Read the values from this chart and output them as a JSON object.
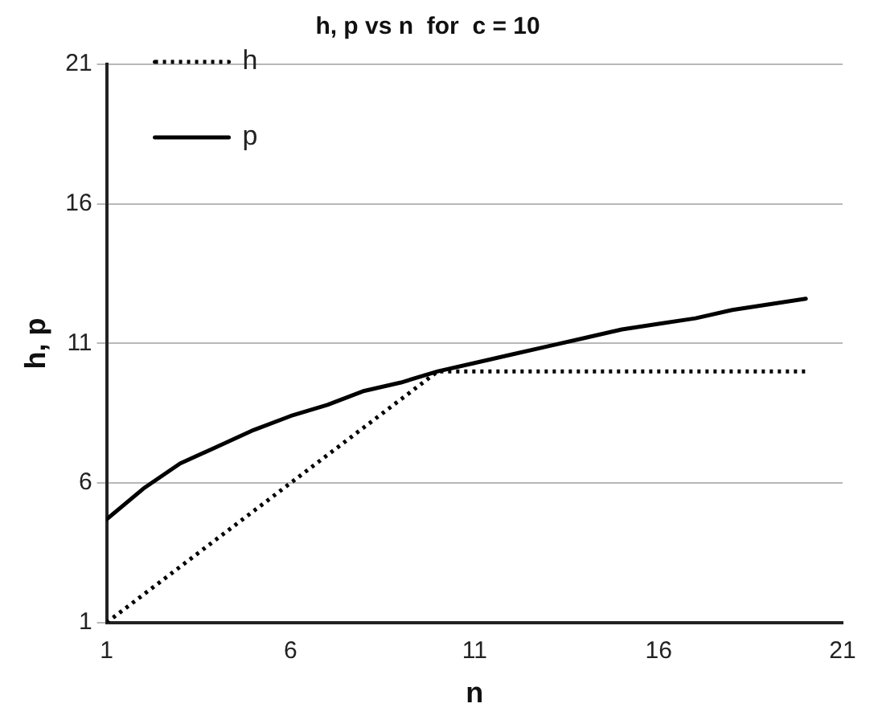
{
  "chart_data": {
    "type": "line",
    "title": "h, p vs n  for  c = 10",
    "xlabel": "n",
    "ylabel": "h, p",
    "x": [
      1,
      2,
      3,
      4,
      5,
      6,
      7,
      8,
      9,
      10,
      11,
      12,
      13,
      14,
      15,
      16,
      17,
      18,
      19,
      20
    ],
    "series": [
      {
        "name": "h",
        "color": "#000000",
        "line_style": "dotted",
        "values": [
          1,
          2,
          3,
          4,
          5,
          6,
          7,
          8,
          9,
          10,
          10,
          10,
          10,
          10,
          10,
          10,
          10,
          10,
          10,
          10
        ]
      },
      {
        "name": "p",
        "color": "#000000",
        "line_style": "solid",
        "values": [
          4.7,
          5.8,
          6.7,
          7.3,
          7.9,
          8.4,
          8.8,
          9.3,
          9.6,
          10.0,
          10.3,
          10.6,
          10.9,
          11.2,
          11.5,
          11.7,
          11.9,
          12.2,
          12.4,
          12.6
        ]
      }
    ],
    "xlim": [
      1,
      21
    ],
    "xticks": [
      1,
      6,
      11,
      16,
      21
    ],
    "ylim": [
      1,
      21
    ],
    "yticks": [
      1,
      6,
      11,
      16,
      21
    ],
    "grid": "y",
    "legend": "top left",
    "marker": "none"
  }
}
